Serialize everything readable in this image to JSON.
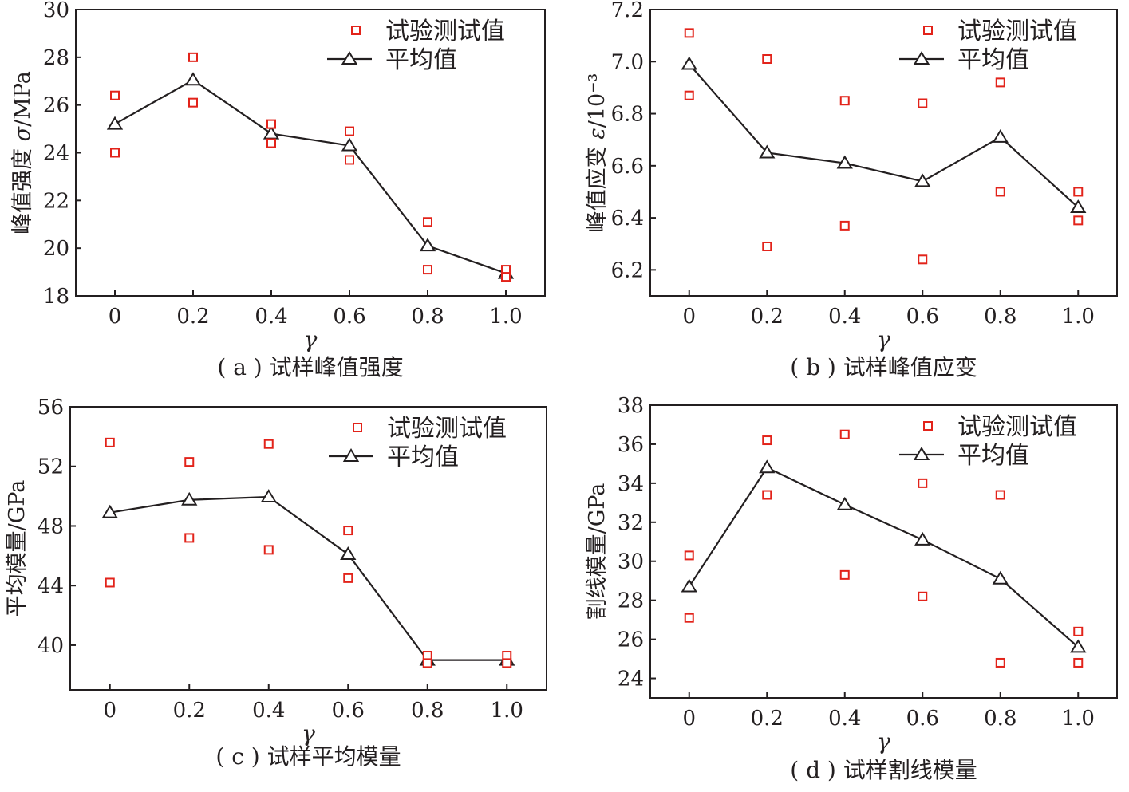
{
  "legend": {
    "test": "试验测试值",
    "mean": "平均值"
  },
  "chart_data": [
    {
      "id": "a",
      "type": "line",
      "caption": "( a ) 试样峰值强度",
      "ylabel_prefix": "峰值强度 ",
      "ylabel_symbol": "σ",
      "ylabel_suffix": "/MPa",
      "xlabel": "γ",
      "x": [
        0,
        0.2,
        0.4,
        0.6,
        0.8,
        1.0
      ],
      "xticklabels": [
        "0",
        "0.2",
        "0.4",
        "0.6",
        "0.8",
        "1.0"
      ],
      "xlim": [
        -0.1,
        1.1
      ],
      "ylim": [
        18,
        30
      ],
      "yticks": [
        18,
        20,
        22,
        24,
        26,
        28,
        30
      ],
      "yticklabels": [
        "18",
        "20",
        "22",
        "24",
        "26",
        "28",
        "30"
      ],
      "legend_position": "top-right",
      "series": [
        {
          "name": "试验测试值",
          "type": "scatter",
          "x": [
            0,
            0,
            0.2,
            0.2,
            0.4,
            0.4,
            0.6,
            0.6,
            0.8,
            0.8,
            1.0,
            1.0
          ],
          "values": [
            26.4,
            24.0,
            28.0,
            26.1,
            25.2,
            24.4,
            24.9,
            23.7,
            21.1,
            19.1,
            19.1,
            18.8
          ]
        },
        {
          "name": "平均值",
          "type": "line",
          "x": [
            0,
            0.2,
            0.4,
            0.6,
            0.8,
            1.0
          ],
          "values": [
            25.2,
            27.05,
            24.8,
            24.3,
            20.1,
            18.95
          ]
        }
      ]
    },
    {
      "id": "b",
      "type": "line",
      "caption": "( b ) 试样峰值应变",
      "ylabel_prefix": "峰值应变 ",
      "ylabel_symbol": "ε",
      "ylabel_suffix": "/10⁻³",
      "xlabel": "γ",
      "x": [
        0,
        0.2,
        0.4,
        0.6,
        0.8,
        1.0
      ],
      "xticklabels": [
        "0",
        "0.2",
        "0.4",
        "0.6",
        "0.8",
        "1.0"
      ],
      "xlim": [
        -0.1,
        1.1
      ],
      "ylim": [
        6.1,
        7.2
      ],
      "yticks": [
        6.2,
        6.4,
        6.6,
        6.8,
        7.0,
        7.2
      ],
      "yticklabels": [
        "6.2",
        "6.4",
        "6.6",
        "6.8",
        "7.0",
        "7.2"
      ],
      "legend_position": "top-right",
      "series": [
        {
          "name": "试验测试值",
          "type": "scatter",
          "x": [
            0,
            0,
            0.2,
            0.2,
            0.4,
            0.4,
            0.6,
            0.6,
            0.8,
            0.8,
            1.0,
            1.0
          ],
          "values": [
            7.11,
            6.87,
            7.01,
            6.29,
            6.85,
            6.37,
            6.84,
            6.24,
            6.92,
            6.5,
            6.5,
            6.39
          ]
        },
        {
          "name": "平均值",
          "type": "line",
          "x": [
            0,
            0.2,
            0.4,
            0.6,
            0.8,
            1.0
          ],
          "values": [
            6.99,
            6.65,
            6.61,
            6.54,
            6.71,
            6.44
          ]
        }
      ]
    },
    {
      "id": "c",
      "type": "line",
      "caption": "( c ) 试样平均模量",
      "ylabel_prefix": "平均模量/GPa",
      "ylabel_symbol": "",
      "ylabel_suffix": "",
      "xlabel": "γ",
      "x": [
        0,
        0.2,
        0.4,
        0.6,
        0.8,
        1.0
      ],
      "xticklabels": [
        "0",
        "0.2",
        "0.4",
        "0.6",
        "0.8",
        "1.0"
      ],
      "xlim": [
        -0.1,
        1.1
      ],
      "ylim": [
        37,
        56
      ],
      "yticks": [
        40,
        44,
        48,
        52,
        56
      ],
      "yticklabels": [
        "40",
        "44",
        "48",
        "52",
        "56"
      ],
      "legend_position": "top-right",
      "series": [
        {
          "name": "试验测试值",
          "type": "scatter",
          "x": [
            0,
            0,
            0.2,
            0.2,
            0.4,
            0.4,
            0.6,
            0.6,
            0.8,
            0.8,
            1.0,
            1.0
          ],
          "values": [
            53.6,
            44.2,
            52.3,
            47.2,
            53.5,
            46.4,
            47.7,
            44.5,
            39.3,
            38.8,
            39.3,
            38.8
          ]
        },
        {
          "name": "平均值",
          "type": "line",
          "x": [
            0,
            0.2,
            0.4,
            0.6,
            0.8,
            1.0
          ],
          "values": [
            48.9,
            49.75,
            49.95,
            46.1,
            39.0,
            39.0
          ]
        }
      ]
    },
    {
      "id": "d",
      "type": "line",
      "caption": "( d ) 试样割线模量",
      "ylabel_prefix": "割线模量/GPa",
      "ylabel_symbol": "",
      "ylabel_suffix": "",
      "xlabel": "γ",
      "x": [
        0,
        0.2,
        0.4,
        0.6,
        0.8,
        1.0
      ],
      "xticklabels": [
        "0",
        "0.2",
        "0.4",
        "0.6",
        "0.8",
        "1.0"
      ],
      "xlim": [
        -0.1,
        1.1
      ],
      "ylim": [
        23,
        38
      ],
      "yticks": [
        24,
        26,
        28,
        30,
        32,
        34,
        36,
        38
      ],
      "yticklabels": [
        "24",
        "26",
        "28",
        "30",
        "32",
        "34",
        "36",
        "38"
      ],
      "legend_position": "top-right",
      "series": [
        {
          "name": "试验测试值",
          "type": "scatter",
          "x": [
            0,
            0,
            0.2,
            0.2,
            0.4,
            0.4,
            0.6,
            0.6,
            0.8,
            0.8,
            1.0,
            1.0
          ],
          "values": [
            30.3,
            27.1,
            36.2,
            33.4,
            36.5,
            29.3,
            34.0,
            28.2,
            33.4,
            24.8,
            26.4,
            24.8
          ]
        },
        {
          "name": "平均值",
          "type": "line",
          "x": [
            0,
            0.2,
            0.4,
            0.6,
            0.8,
            1.0
          ],
          "values": [
            28.7,
            34.8,
            32.9,
            31.1,
            29.1,
            25.6
          ]
        }
      ]
    }
  ]
}
